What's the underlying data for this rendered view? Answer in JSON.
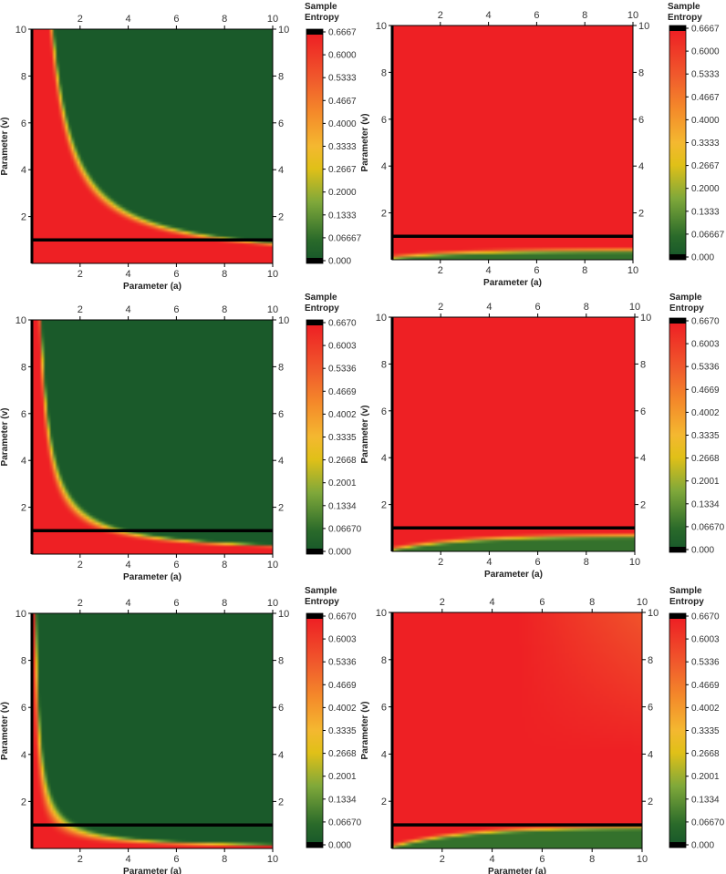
{
  "figure": {
    "colormap": [
      {
        "t": 0.0,
        "color": "#1a5a2a"
      },
      {
        "t": 0.08,
        "color": "#2a6a2a"
      },
      {
        "t": 0.25,
        "color": "#7fa83a"
      },
      {
        "t": 0.4,
        "color": "#e0c018"
      },
      {
        "t": 0.5,
        "color": "#f4b830"
      },
      {
        "t": 0.65,
        "color": "#f48a2a"
      },
      {
        "t": 0.8,
        "color": "#f05a2c"
      },
      {
        "t": 1.0,
        "color": "#ee2024"
      }
    ],
    "threshold_line_color": "#000000"
  },
  "chart_data": [
    {
      "type": "heatmap",
      "panel": "top-left",
      "xlabel": "Parameter (a)",
      "ylabel": "Parameter (v)",
      "xlim": [
        0,
        10
      ],
      "ylim": [
        0,
        10
      ],
      "xticks": [
        "2",
        "4",
        "6",
        "8",
        "10"
      ],
      "yticks": [
        "2",
        "4",
        "6",
        "8",
        "10"
      ],
      "x2ticks": [
        "2",
        "4",
        "6",
        "8",
        "10"
      ],
      "y2ticks": [
        "2",
        "4",
        "6",
        "8",
        "10"
      ],
      "threshold_line_v": 1,
      "colorbar": {
        "title": "Sample Entropy",
        "ticks": [
          "0.6667",
          "0.6000",
          "0.5333",
          "0.4667",
          "0.4000",
          "0.3333",
          "0.2667",
          "0.2000",
          "0.1333",
          "0.06667",
          "0.000"
        ]
      },
      "pattern": {
        "kind": "boundary",
        "k": 9,
        "width": 2
      }
    },
    {
      "type": "heatmap",
      "panel": "top-right",
      "xlabel": "Parameter (a)",
      "ylabel": "Parameter (v)",
      "xlim": [
        0,
        10
      ],
      "ylim": [
        0,
        10
      ],
      "xticks": [
        "2",
        "4",
        "6",
        "8",
        "10"
      ],
      "yticks": [
        "2",
        "4",
        "6",
        "8",
        "10"
      ],
      "x2ticks": [
        "2",
        "4",
        "6",
        "8",
        "10"
      ],
      "y2ticks": [
        "2",
        "4",
        "6",
        "8",
        "10"
      ],
      "threshold_line_v": 1,
      "colorbar": {
        "title": "Sample Entropy",
        "ticks": [
          "0.6667",
          "0.6000",
          "0.5333",
          "0.4667",
          "0.4000",
          "0.3333",
          "0.2667",
          "0.2000",
          "0.1333",
          "0.06667",
          "0.000"
        ]
      },
      "pattern": {
        "kind": "bottom",
        "rise": 0.33
      }
    },
    {
      "type": "heatmap",
      "panel": "middle-left",
      "xlabel": "Parameter (a)",
      "ylabel": "Parameter (v)",
      "xlim": [
        0,
        10
      ],
      "ylim": [
        0,
        10
      ],
      "xticks": [
        "2",
        "4",
        "6",
        "8",
        "10"
      ],
      "yticks": [
        "2",
        "4",
        "6",
        "8",
        "10"
      ],
      "x2ticks": [
        "2",
        "4",
        "6",
        "8",
        "10"
      ],
      "y2ticks": [
        "2",
        "4",
        "6",
        "8",
        "10"
      ],
      "threshold_line_v": 1,
      "colorbar": {
        "title": "Sample Entropy",
        "ticks": [
          "0.6670",
          "0.6003",
          "0.5336",
          "0.4669",
          "0.4002",
          "0.3335",
          "0.2668",
          "0.2001",
          "0.1334",
          "0.06670",
          "0.000"
        ]
      },
      "pattern": {
        "kind": "boundary",
        "k": 4,
        "width": 1.4
      }
    },
    {
      "type": "heatmap",
      "panel": "middle-right",
      "xlabel": "Parameter (a)",
      "ylabel": "Parameter (v)",
      "xlim": [
        0,
        10
      ],
      "ylim": [
        0,
        10
      ],
      "xticks": [
        "2",
        "4",
        "6",
        "8",
        "10"
      ],
      "yticks": [
        "2",
        "4",
        "6",
        "8",
        "10"
      ],
      "x2ticks": [
        "2",
        "4",
        "6",
        "8",
        "10"
      ],
      "y2ticks": [
        "2",
        "4",
        "6",
        "8",
        "10"
      ],
      "threshold_line_v": 1,
      "colorbar": {
        "title": "Sample Entropy",
        "ticks": [
          "0.6670",
          "0.6003",
          "0.5336",
          "0.4669",
          "0.4002",
          "0.3335",
          "0.2668",
          "0.2001",
          "0.1334",
          "0.06670",
          "0.000"
        ]
      },
      "pattern": {
        "kind": "bottom",
        "rise": 0.6
      }
    },
    {
      "type": "heatmap",
      "panel": "bottom-left",
      "xlabel": "Parameter (a)",
      "ylabel": "Parameter (v)",
      "xlim": [
        0,
        10
      ],
      "ylim": [
        0,
        10
      ],
      "xticks": [
        "2",
        "4",
        "6",
        "8",
        "10"
      ],
      "yticks": [
        "2",
        "4",
        "6",
        "8",
        "10"
      ],
      "x2ticks": [
        "2",
        "4",
        "6",
        "8",
        "10"
      ],
      "y2ticks": [
        "2",
        "4",
        "6",
        "8",
        "10"
      ],
      "threshold_line_v": 1,
      "colorbar": {
        "title": "Sample Entropy",
        "ticks": [
          "0.6670",
          "0.6003",
          "0.5336",
          "0.4669",
          "0.4002",
          "0.3335",
          "0.2668",
          "0.2001",
          "0.1334",
          "0.06670",
          "0.000"
        ]
      },
      "pattern": {
        "kind": "boundary",
        "k": 1.8,
        "width": 1.2
      }
    },
    {
      "type": "heatmap",
      "panel": "bottom-right",
      "xlabel": "Parameter (a)",
      "ylabel": "Parameter (v)",
      "xlim": [
        0,
        10
      ],
      "ylim": [
        0,
        10
      ],
      "xticks": [
        "2",
        "4",
        "6",
        "8",
        "10"
      ],
      "yticks": [
        "2",
        "4",
        "6",
        "8",
        "10"
      ],
      "x2ticks": [
        "2",
        "4",
        "6",
        "8",
        "10"
      ],
      "y2ticks": [
        "2",
        "4",
        "6",
        "8",
        "10"
      ],
      "threshold_line_v": 1,
      "colorbar": {
        "title": "Sample Entropy",
        "ticks": [
          "0.6670",
          "0.6003",
          "0.5336",
          "0.4669",
          "0.4002",
          "0.3335",
          "0.2668",
          "0.2001",
          "0.1334",
          "0.06670",
          "0.000"
        ]
      },
      "pattern": {
        "kind": "bottom",
        "rise": 0.85,
        "tr_fade": true
      }
    }
  ]
}
